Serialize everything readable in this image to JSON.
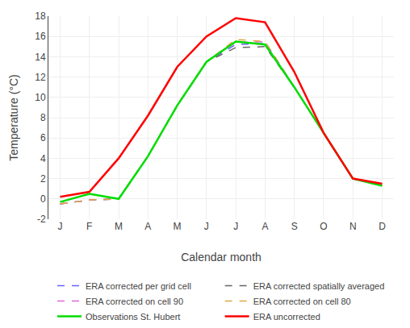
{
  "chart_data": {
    "type": "line",
    "xlabel": "Calendar month",
    "ylabel": "Temperature (°C)",
    "categories": [
      "J",
      "F",
      "M",
      "A",
      "M",
      "J",
      "J",
      "A",
      "S",
      "O",
      "N",
      "D"
    ],
    "series": [
      {
        "name": "ERA corrected per grid cell",
        "color": "#6666ff",
        "line_style": "dashed",
        "values": [
          -0.5,
          -0.1,
          0.0,
          4.2,
          9.2,
          13.5,
          15.2,
          15.3,
          11.0,
          6.5,
          2.0,
          1.3
        ]
      },
      {
        "name": "ERA corrected spatially averaged",
        "color": "#666666",
        "line_style": "dashed",
        "values": [
          -0.5,
          -0.1,
          0.0,
          4.2,
          9.2,
          13.5,
          14.9,
          15.0,
          11.0,
          6.5,
          2.0,
          1.3
        ]
      },
      {
        "name": "ERA corrected on cell 90",
        "color": "#dd66dd",
        "line_style": "dashed",
        "values": [
          -0.5,
          -0.1,
          0.0,
          4.2,
          9.2,
          13.5,
          15.4,
          15.5,
          11.0,
          6.5,
          2.0,
          1.3
        ]
      },
      {
        "name": "ERA corrected on cell 80",
        "color": "#ddaa44",
        "line_style": "dashed",
        "values": [
          -0.5,
          -0.1,
          0.0,
          4.2,
          9.2,
          13.5,
          15.7,
          15.5,
          11.0,
          6.5,
          2.0,
          1.3
        ]
      },
      {
        "name": "Observations St. Hubert",
        "color": "#00dd00",
        "line_style": "solid",
        "values": [
          -0.3,
          0.5,
          0.0,
          4.2,
          9.2,
          13.5,
          15.5,
          15.2,
          11.0,
          6.5,
          2.0,
          1.3
        ]
      },
      {
        "name": "ERA uncorrected",
        "color": "#ff0000",
        "line_style": "solid",
        "values": [
          0.2,
          0.7,
          4.0,
          8.2,
          13.0,
          16.0,
          17.8,
          17.4,
          12.5,
          6.5,
          2.0,
          1.5
        ]
      }
    ],
    "ylim": [
      -2,
      18
    ],
    "yticks": [
      -2,
      0,
      2,
      4,
      6,
      8,
      10,
      12,
      14,
      16,
      18
    ],
    "grid": true,
    "legend": "bottom"
  }
}
